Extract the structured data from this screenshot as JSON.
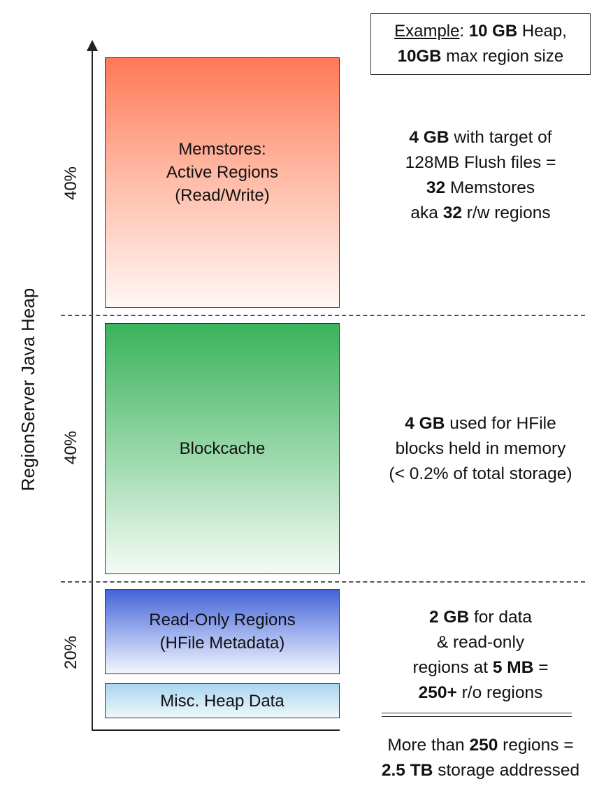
{
  "y_axis": {
    "label": "RegionServer Java Heap"
  },
  "percentages": {
    "memstore": "40%",
    "blockcache": "40%",
    "readonly": "20%"
  },
  "blocks": {
    "memstore": {
      "line1": "Memstores:",
      "line2": "Active Regions",
      "line3": "(Read/Write)",
      "color": "#ff7857"
    },
    "blockcache": {
      "label": "Blockcache",
      "color": "#3ab35b"
    },
    "readonly": {
      "line1": "Read-Only Regions",
      "line2": "(HFile Metadata)",
      "color": "#4363d8"
    },
    "misc": {
      "label": "Misc. Heap Data",
      "color": "#aad6ef"
    }
  },
  "example": {
    "underlined": "Example",
    "colon": ": ",
    "bold1": "10 GB",
    "text1": " Heap,",
    "bold2": "10GB",
    "text2": " max region size"
  },
  "notes": {
    "memstore": {
      "l1_bold": "4 GB",
      "l1_text": " with target of",
      "l2_text": "128MB Flush files =",
      "l3_bold": "32",
      "l3_text": " Memstores",
      "l4_text1": "aka ",
      "l4_bold": "32",
      "l4_text2": " r/w regions"
    },
    "blockcache": {
      "l1_bold": "4 GB",
      "l1_text": " used for HFile",
      "l2_text": "blocks held in memory",
      "l3_text": "(< 0.2% of total storage)"
    },
    "readonly": {
      "l1_bold": "2 GB",
      "l1_text": " for data",
      "l2_text": "& read-only",
      "l3_text": "regions at ",
      "l3_bold": "5 MB",
      "l3_text2": " =",
      "l4_bold": "250+",
      "l4_text": " r/o regions"
    },
    "total": {
      "l1_text": "More than ",
      "l1_bold": "250",
      "l1_text2": " regions =",
      "l2_bold": "2.5 TB",
      "l2_text": " storage addressed"
    }
  }
}
